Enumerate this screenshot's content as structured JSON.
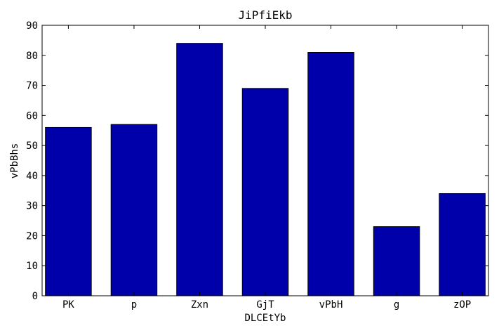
{
  "chart_data": {
    "type": "bar",
    "title": "JiPfiEkb",
    "xlabel": "DLCEtYb",
    "ylabel": "vPbBhs",
    "categories": [
      "PK",
      "p",
      "Zxn",
      "GjT",
      "vPbH",
      "g",
      "zOP"
    ],
    "values": [
      56,
      57,
      84,
      69,
      81,
      23,
      34
    ],
    "ylim": [
      0,
      90
    ],
    "yticks": [
      0,
      10,
      20,
      30,
      40,
      50,
      60,
      70,
      80,
      90
    ],
    "grid": false,
    "bar_color": "#0000aa"
  }
}
